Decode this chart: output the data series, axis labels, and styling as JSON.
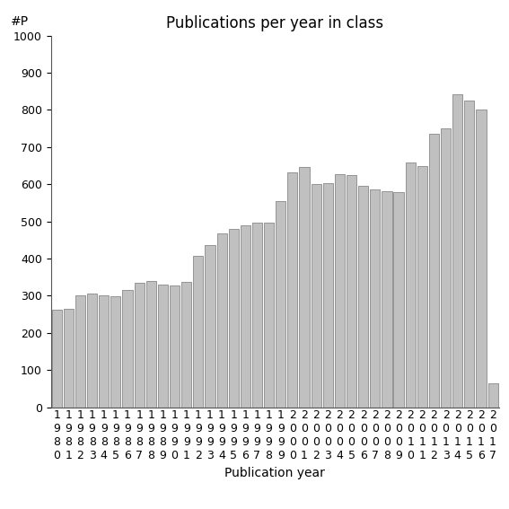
{
  "title": "Publications per year in class",
  "xlabel": "Publication year",
  "ylabel": "#P",
  "years": [
    "1980",
    "1981",
    "1982",
    "1983",
    "1984",
    "1985",
    "1986",
    "1987",
    "1988",
    "1989",
    "1990",
    "1991",
    "1992",
    "1993",
    "1994",
    "1995",
    "1996",
    "1997",
    "1998",
    "1999",
    "2000",
    "2001",
    "2002",
    "2003",
    "2004",
    "2005",
    "2006",
    "2007",
    "2008",
    "2009",
    "2010",
    "2011",
    "2012",
    "2013",
    "2014",
    "2015",
    "2016",
    "2017"
  ],
  "values": [
    262,
    265,
    300,
    307,
    300,
    298,
    316,
    335,
    340,
    330,
    328,
    338,
    408,
    437,
    468,
    479,
    490,
    496,
    497,
    555,
    632,
    647,
    600,
    603,
    628,
    625,
    595,
    585,
    582,
    578,
    658,
    648,
    735,
    751,
    843,
    825,
    800,
    65
  ],
  "bar_color": "#c0c0c0",
  "bar_edge_color": "#888888",
  "ylim": [
    0,
    1000
  ],
  "yticks": [
    0,
    100,
    200,
    300,
    400,
    500,
    600,
    700,
    800,
    900,
    1000
  ],
  "background_color": "#ffffff",
  "title_fontsize": 12,
  "xlabel_fontsize": 10,
  "ylabel_fontsize": 10,
  "tick_fontsize": 9
}
